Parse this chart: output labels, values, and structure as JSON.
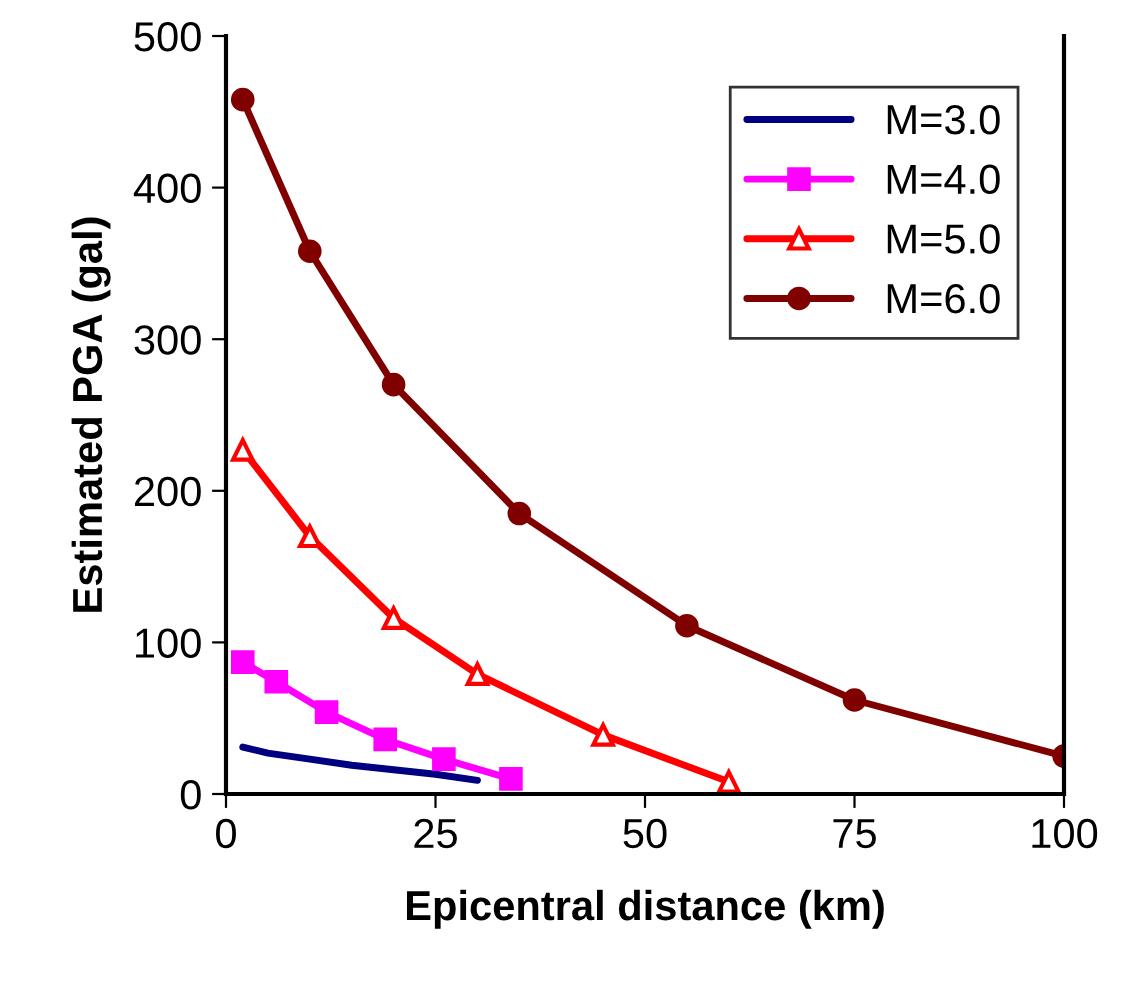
{
  "chart_data": {
    "type": "line",
    "xlabel": "Epicentral distance (km)",
    "ylabel": "Estimated PGA (gal)",
    "xlim": [
      0,
      100
    ],
    "ylim": [
      0,
      500
    ],
    "xticks": [
      0,
      25,
      50,
      75,
      100
    ],
    "yticks": [
      0,
      100,
      200,
      300,
      400,
      500
    ],
    "grid": false,
    "legend": "top right",
    "series": [
      {
        "name": "M=3.0",
        "color": "#000080",
        "marker": "none",
        "x": [
          2,
          5,
          10,
          15,
          20,
          25,
          30
        ],
        "values": [
          31,
          27,
          23,
          19,
          16,
          13,
          9
        ]
      },
      {
        "name": "M=4.0",
        "color": "#ff00ff",
        "marker": "square",
        "x": [
          2,
          6,
          12,
          19,
          26,
          34
        ],
        "values": [
          87,
          74,
          54,
          36,
          23,
          10
        ]
      },
      {
        "name": "M=5.0",
        "color": "#ff0000",
        "marker": "triangle",
        "x": [
          2,
          10,
          20,
          30,
          45,
          60
        ],
        "values": [
          227,
          170,
          116,
          79,
          39,
          8
        ]
      },
      {
        "name": "M=6.0",
        "color": "#800000",
        "marker": "circle",
        "x": [
          2,
          10,
          20,
          35,
          55,
          75,
          100
        ],
        "values": [
          458,
          358,
          270,
          185,
          111,
          62,
          25
        ]
      }
    ]
  }
}
